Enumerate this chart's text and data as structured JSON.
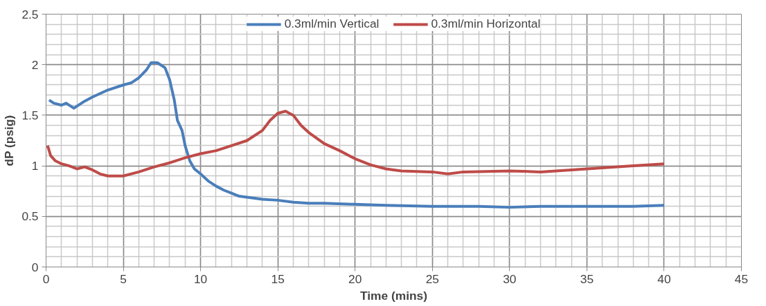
{
  "chart_data": {
    "type": "line",
    "xlabel": "Time (mins)",
    "ylabel": "dP (psig)",
    "xlim": [
      0,
      45
    ],
    "xticks": [
      0,
      5,
      10,
      15,
      20,
      25,
      30,
      35,
      40,
      45
    ],
    "ylim": [
      0,
      2.5
    ],
    "yticks": [
      0,
      0.5,
      1,
      1.5,
      2,
      2.5
    ],
    "grid": true,
    "legend": "top",
    "marker": "none",
    "line_style": "solid",
    "series": [
      {
        "name": "0.3ml/min Vertical",
        "color": "#4a7ebb",
        "x": [
          0.2,
          0.5,
          1,
          1.3,
          1.8,
          2.5,
          3,
          4,
          5,
          5.5,
          6,
          6.5,
          6.8,
          7.2,
          7.7,
          8,
          8.3,
          8.5,
          8.8,
          9,
          9.3,
          9.6,
          10,
          10.5,
          11,
          11.5,
          12,
          12.5,
          13,
          14,
          15,
          16,
          17,
          18,
          20,
          22,
          25,
          28,
          30,
          32,
          35,
          38,
          40
        ],
        "values": [
          1.65,
          1.62,
          1.6,
          1.62,
          1.57,
          1.64,
          1.68,
          1.75,
          1.8,
          1.82,
          1.87,
          1.95,
          2.02,
          2.02,
          1.97,
          1.85,
          1.65,
          1.45,
          1.35,
          1.2,
          1.05,
          0.97,
          0.92,
          0.85,
          0.8,
          0.76,
          0.73,
          0.7,
          0.69,
          0.67,
          0.66,
          0.64,
          0.63,
          0.63,
          0.62,
          0.61,
          0.6,
          0.6,
          0.59,
          0.6,
          0.6,
          0.6,
          0.61
        ]
      },
      {
        "name": "0.3ml/min Horizontal",
        "color": "#be4b48",
        "x": [
          0.1,
          0.3,
          0.6,
          1,
          1.5,
          2,
          2.5,
          3,
          3.5,
          4,
          5,
          6,
          7,
          8,
          9,
          10,
          11,
          12,
          13,
          14,
          14.5,
          15,
          15.5,
          16,
          16.5,
          17,
          18,
          19,
          20,
          21,
          22,
          23,
          25,
          26,
          27,
          30,
          32,
          35,
          38,
          40
        ],
        "values": [
          1.2,
          1.1,
          1.05,
          1.02,
          1.0,
          0.97,
          0.99,
          0.96,
          0.92,
          0.9,
          0.9,
          0.94,
          0.99,
          1.03,
          1.08,
          1.12,
          1.15,
          1.2,
          1.25,
          1.35,
          1.45,
          1.52,
          1.54,
          1.5,
          1.4,
          1.33,
          1.22,
          1.15,
          1.07,
          1.01,
          0.97,
          0.95,
          0.94,
          0.92,
          0.94,
          0.95,
          0.94,
          0.97,
          1.0,
          1.02
        ]
      }
    ]
  }
}
